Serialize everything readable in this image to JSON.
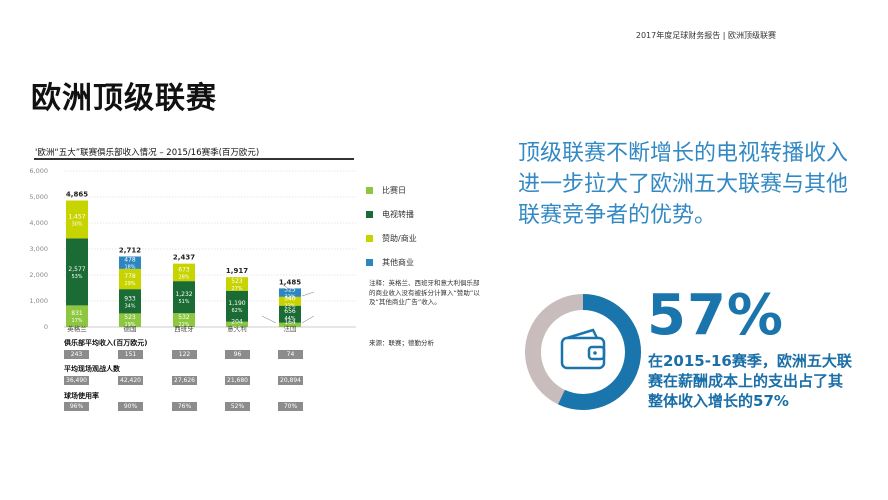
{
  "header": {
    "text": "2017年度足球财务报告 | 欧洲顶级联赛"
  },
  "title": "欧洲顶级联赛",
  "chart": {
    "title": "'欧洲“五大”联赛俱乐部收入情况 – 2015/16赛季(百万欧元)"
  },
  "legend": [
    {
      "label": "比赛日",
      "color": "#8dc63f"
    },
    {
      "label": "电视转播",
      "color": "#1b6b34"
    },
    {
      "label": "赞助/商业",
      "color": "#c8d400"
    },
    {
      "label": "其他商业",
      "color": "#2e86c1"
    }
  ],
  "note": "注释：英格兰、西班牙和意大利俱乐部的商业收入没有被拆分计算入“赞助”以及“其他商业广告”收入。",
  "source": "来源：联赛；德勤分析",
  "chart_data": {
    "type": "bar",
    "stacked": true,
    "categories": [
      "英格兰",
      "德国",
      "西班牙",
      "意大利",
      "法国"
    ],
    "y_ticks": [
      "0",
      "1,000",
      "2,000",
      "3,000",
      "4,000",
      "5,000",
      "6,000"
    ],
    "ylim": [
      0,
      6000
    ],
    "totals": [
      "4,865",
      "2,712",
      "2,437",
      "1,917",
      "1,485"
    ],
    "series": [
      {
        "name": "比赛日",
        "color": "#8dc63f",
        "values": [
          831,
          523,
          532,
          204,
          164
        ],
        "labels": [
          "831\n17%",
          "523\n19%",
          "532\n22%",
          "204\n11%",
          "164\n11%"
        ]
      },
      {
        "name": "电视转播",
        "color": "#1b6b34",
        "values": [
          2577,
          933,
          1232,
          1190,
          656
        ],
        "labels": [
          "2,577\n53%",
          "933\n34%",
          "1,232\n51%",
          "1,190\n62%",
          "656\n44%"
        ]
      },
      {
        "name": "赞助/商业",
        "color": "#c8d400",
        "values": [
          1457,
          778,
          673,
          523,
          340
        ],
        "labels": [
          "1,457\n30%",
          "778\n29%",
          "673\n28%",
          "523\n27%",
          "340\n23%"
        ]
      },
      {
        "name": "其他商业",
        "color": "#2e86c1",
        "values": [
          0,
          478,
          0,
          0,
          325
        ],
        "labels": [
          "",
          "478\n18%",
          "",
          "",
          "325\n22%"
        ]
      }
    ]
  },
  "stats": [
    {
      "label": "俱乐部平均收入(百万欧元)",
      "values": [
        "243",
        "151",
        "122",
        "96",
        "74"
      ]
    },
    {
      "label": "平均现场观战人数",
      "values": [
        "36,490",
        "42,420",
        "27,626",
        "21,680",
        "20,894"
      ]
    },
    {
      "label": "球场使用率",
      "values": [
        "96%",
        "90%",
        "76%",
        "52%",
        "70%"
      ]
    }
  ],
  "headline": "顶级联赛不断增长的电视转播收入进一步拉大了欧洲五大联赛与其他联赛竞争者的优势。",
  "highlight": {
    "percent": "57%",
    "value": 57,
    "description": "在2015-16赛季，欧洲五大联赛在薪酬成本上的支出占了其整体收入增长的57%",
    "colors": {
      "filled": "#1a75ad",
      "remaining": "#c9bcbc",
      "icon": "#1a75ad"
    },
    "icon": "wallet-icon"
  }
}
